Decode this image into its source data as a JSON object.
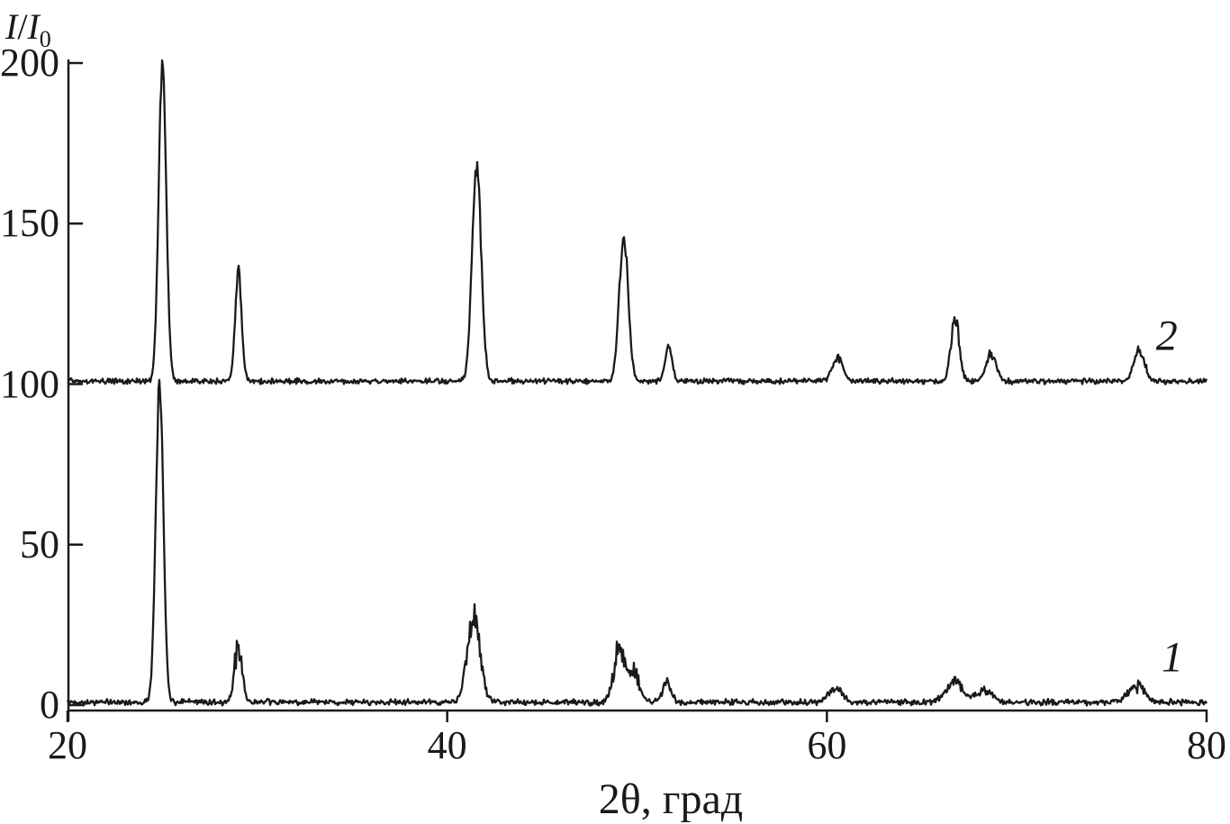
{
  "chart_data": {
    "type": "line",
    "title": "",
    "xlabel": "2θ, град",
    "ylabel": "I/I₀",
    "xlim": [
      20,
      80
    ],
    "ylim": [
      0,
      200
    ],
    "x_ticks": [
      20,
      40,
      60,
      80
    ],
    "y_ticks": [
      0,
      50,
      100,
      150,
      200
    ],
    "grid": false,
    "legend_position": "labels-at-right-of-each-trace",
    "line_color": "#1a1a1a",
    "background": "#ffffff",
    "description": "X-ray diffraction patterns; two noisy intensity traces vs diffraction angle 2-theta (degrees); trace 2 is offset by +100 relative-intensity units above trace 1",
    "series": [
      {
        "name": "1",
        "baseline": 0,
        "noise_amplitude": 1.1,
        "label_anchor": {
          "x": 78.2,
          "y": 15
        },
        "peaks": [
          {
            "two_theta": 24.85,
            "height": 99,
            "sigma": 0.2,
            "jag": 0.03
          },
          {
            "two_theta": 29.0,
            "height": 18,
            "sigma": 0.2,
            "jag": 0.3
          },
          {
            "two_theta": 41.4,
            "height": 28,
            "sigma": 0.33,
            "jag": 0.22
          },
          {
            "two_theta": 49.05,
            "height": 16,
            "sigma": 0.28,
            "jag": 0.3
          },
          {
            "two_theta": 49.8,
            "height": 10,
            "sigma": 0.3,
            "jag": 0.3
          },
          {
            "two_theta": 51.55,
            "height": 6.5,
            "sigma": 0.22,
            "jag": 0.25
          },
          {
            "two_theta": 60.45,
            "height": 4,
            "sigma": 0.38,
            "jag": 0.3
          },
          {
            "two_theta": 66.7,
            "height": 6.5,
            "sigma": 0.45,
            "jag": 0.3
          },
          {
            "two_theta": 68.3,
            "height": 3.5,
            "sigma": 0.45,
            "jag": 0.25
          },
          {
            "two_theta": 76.3,
            "height": 5,
            "sigma": 0.42,
            "jag": 0.3
          }
        ]
      },
      {
        "name": "2",
        "baseline": 100,
        "noise_amplitude": 1.0,
        "label_anchor": {
          "x": 77.9,
          "y": 115
        },
        "peaks": [
          {
            "two_theta": 25.0,
            "height": 99,
            "sigma": 0.2,
            "jag": 0.03
          },
          {
            "two_theta": 29.0,
            "height": 34,
            "sigma": 0.17,
            "jag": 0.06
          },
          {
            "two_theta": 41.55,
            "height": 67,
            "sigma": 0.24,
            "jag": 0.05
          },
          {
            "two_theta": 49.3,
            "height": 44,
            "sigma": 0.24,
            "jag": 0.08
          },
          {
            "two_theta": 51.65,
            "height": 11,
            "sigma": 0.18,
            "jag": 0.12
          },
          {
            "two_theta": 60.55,
            "height": 7.5,
            "sigma": 0.28,
            "jag": 0.15
          },
          {
            "two_theta": 66.75,
            "height": 19,
            "sigma": 0.22,
            "jag": 0.12
          },
          {
            "two_theta": 68.65,
            "height": 8.5,
            "sigma": 0.26,
            "jag": 0.15
          },
          {
            "two_theta": 76.45,
            "height": 9.5,
            "sigma": 0.28,
            "jag": 0.15
          }
        ]
      }
    ]
  }
}
